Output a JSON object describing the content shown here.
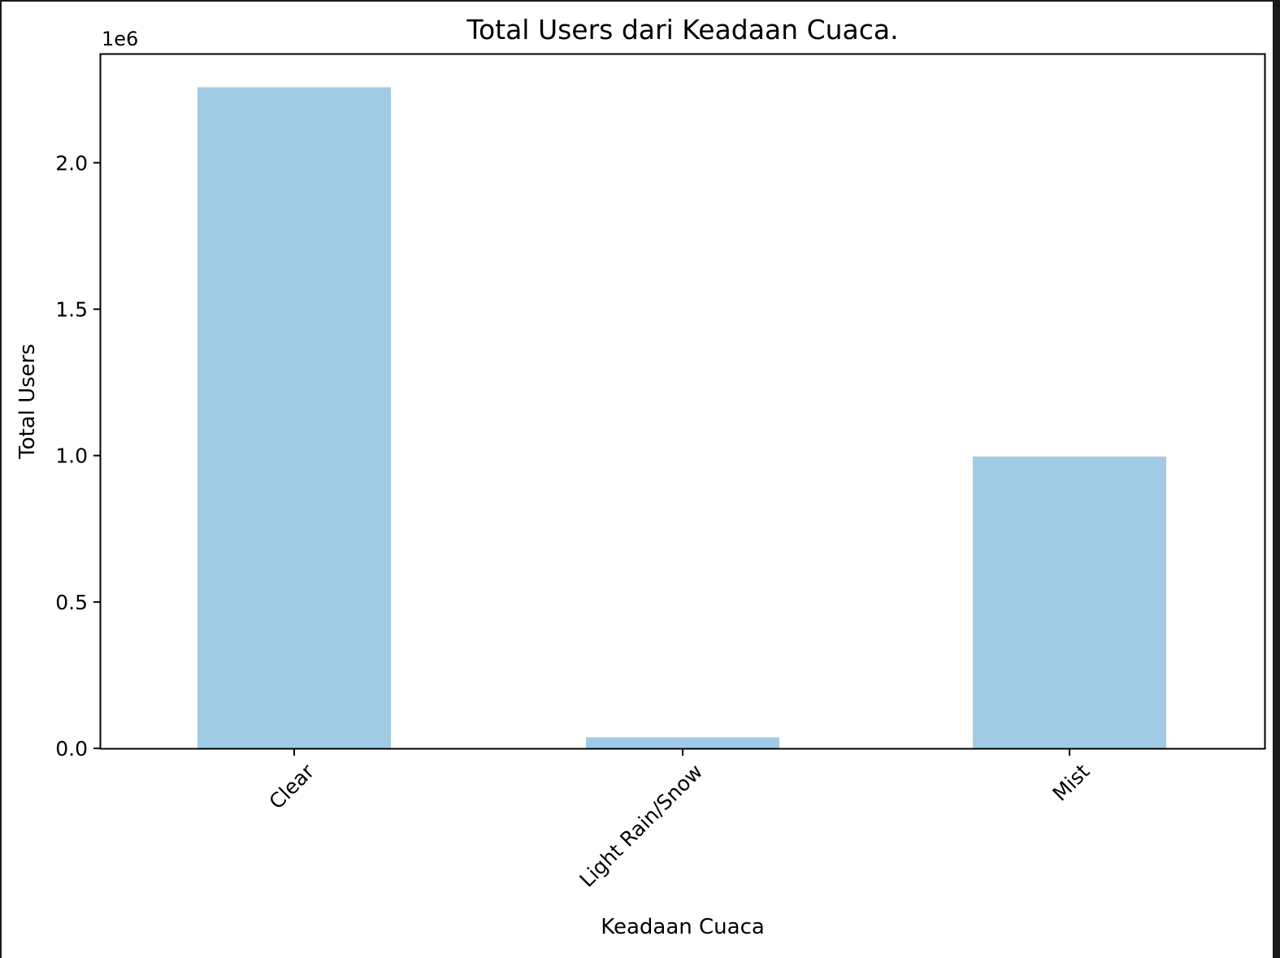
{
  "chart_data": {
    "type": "bar",
    "title": "Total Users dari Keadaan Cuaca.",
    "xlabel": "Keadaan Cuaca",
    "ylabel": "Total Users",
    "y_offset_label": "1e6",
    "categories": [
      "Clear",
      "Light Rain/Snow",
      "Mist"
    ],
    "values": [
      2257952,
      37869,
      996858
    ],
    "ylim": [
      0,
      2370000
    ],
    "yticks": [
      0.0,
      500000,
      1000000,
      1500000,
      2000000
    ],
    "ytick_labels": [
      "0.0",
      "0.5",
      "1.0",
      "1.5",
      "2.0"
    ],
    "xtick_rotation": "45 degrees",
    "bar_color": "#a1cbe5",
    "grid": false,
    "legend": false
  }
}
